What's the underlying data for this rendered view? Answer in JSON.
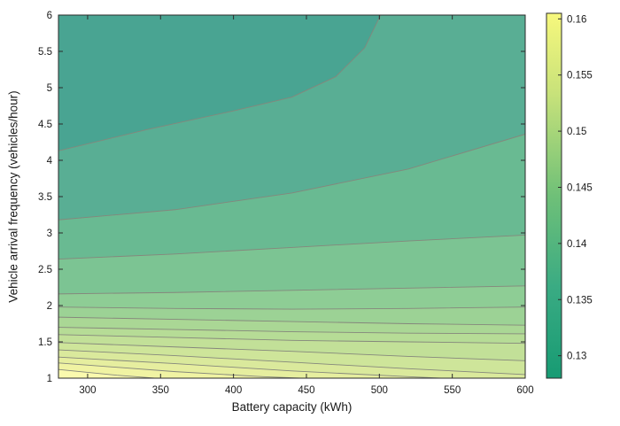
{
  "figure": {
    "background": "#ffffff",
    "axis_text_color": "#1a1a1a"
  },
  "chart_data": {
    "type": "contour",
    "title": "",
    "xlabel": "Battery capacity (kWh)",
    "ylabel": "Vehicle arrival frequency (vehicles/hour)",
    "x_range": [
      280,
      600
    ],
    "y_range": [
      1,
      6
    ],
    "x_ticks": [
      300,
      350,
      400,
      450,
      500,
      550,
      600
    ],
    "y_ticks": [
      1,
      1.5,
      2,
      2.5,
      3,
      3.5,
      4,
      4.5,
      5,
      5.5,
      6
    ],
    "grid": false,
    "legend": "colorbar-right",
    "contour_level_step": 0.0025,
    "contour_line_color": "#85877c",
    "axis_color": "#2b2b2b",
    "band_colors": [
      "#49a492",
      "#59ae94",
      "#69ba92",
      "#7cc493",
      "#8ecd95",
      "#9cd295",
      "#aad795",
      "#b6dc96",
      "#c2e098",
      "#cee59a",
      "#dae99c",
      "#e6ee9f",
      "#f0f3a3",
      "#fafaae"
    ],
    "levels": [
      {
        "value": 0.13,
        "points": [
          [
            280,
            4.13
          ],
          [
            340,
            4.42
          ],
          [
            400,
            4.68
          ],
          [
            440,
            4.87
          ],
          [
            470,
            5.15
          ],
          [
            490,
            5.55
          ],
          [
            502,
            6.05
          ]
        ]
      },
      {
        "value": 0.1325,
        "points": [
          [
            280,
            3.18
          ],
          [
            360,
            3.32
          ],
          [
            440,
            3.55
          ],
          [
            520,
            3.88
          ],
          [
            600,
            4.36
          ]
        ]
      },
      {
        "value": 0.135,
        "points": [
          [
            280,
            2.64
          ],
          [
            360,
            2.71
          ],
          [
            440,
            2.8
          ],
          [
            520,
            2.89
          ],
          [
            600,
            2.97
          ]
        ]
      },
      {
        "value": 0.1375,
        "points": [
          [
            280,
            2.16
          ],
          [
            360,
            2.18
          ],
          [
            440,
            2.21
          ],
          [
            520,
            2.24
          ],
          [
            600,
            2.27
          ]
        ]
      },
      {
        "value": 0.14,
        "points": [
          [
            280,
            1.98
          ],
          [
            360,
            1.96
          ],
          [
            440,
            1.95
          ],
          [
            520,
            1.96
          ],
          [
            600,
            1.98
          ]
        ]
      },
      {
        "value": 0.1425,
        "points": [
          [
            280,
            1.84
          ],
          [
            360,
            1.81
          ],
          [
            440,
            1.78
          ],
          [
            520,
            1.75
          ],
          [
            600,
            1.73
          ]
        ]
      },
      {
        "value": 0.145,
        "points": [
          [
            280,
            1.7
          ],
          [
            360,
            1.67
          ],
          [
            440,
            1.64
          ],
          [
            520,
            1.62
          ],
          [
            600,
            1.61
          ]
        ]
      },
      {
        "value": 0.1475,
        "points": [
          [
            280,
            1.6
          ],
          [
            360,
            1.56
          ],
          [
            440,
            1.52
          ],
          [
            520,
            1.5
          ],
          [
            600,
            1.48
          ]
        ]
      },
      {
        "value": 0.15,
        "points": [
          [
            280,
            1.49
          ],
          [
            360,
            1.43
          ],
          [
            440,
            1.37
          ],
          [
            520,
            1.3
          ],
          [
            600,
            1.24
          ]
        ]
      },
      {
        "value": 0.1525,
        "points": [
          [
            280,
            1.39
          ],
          [
            360,
            1.31
          ],
          [
            440,
            1.22
          ],
          [
            520,
            1.13
          ],
          [
            600,
            1.05
          ]
        ]
      },
      {
        "value": 0.155,
        "points": [
          [
            280,
            1.29
          ],
          [
            360,
            1.2
          ],
          [
            440,
            1.1
          ],
          [
            520,
            1.02
          ],
          [
            600,
            0.95
          ]
        ]
      },
      {
        "value": 0.1575,
        "points": [
          [
            280,
            1.21
          ],
          [
            360,
            1.09
          ],
          [
            420,
            1.02
          ],
          [
            460,
            0.99
          ],
          [
            600,
            0.82
          ]
        ]
      },
      {
        "value": 0.16,
        "points": [
          [
            280,
            1.12
          ],
          [
            320,
            1.04
          ],
          [
            350,
            0.995
          ],
          [
            600,
            0.7
          ]
        ]
      }
    ],
    "colorbar": {
      "min": 0.128,
      "max": 0.1605,
      "ticks": [
        0.13,
        0.135,
        0.14,
        0.145,
        0.15,
        0.155,
        0.16
      ],
      "gradient": [
        {
          "at": 0,
          "color": "#179b73"
        },
        {
          "at": 0.25,
          "color": "#3aab83"
        },
        {
          "at": 0.5,
          "color": "#6fc078"
        },
        {
          "at": 0.78,
          "color": "#c8e27a"
        },
        {
          "at": 1,
          "color": "#f7f87d"
        }
      ]
    }
  }
}
